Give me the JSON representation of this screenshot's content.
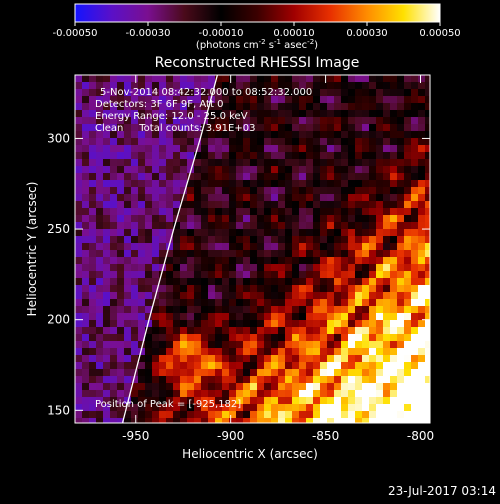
{
  "colorbar": {
    "tick_labels": [
      "-0.00050",
      "-0.00030",
      "-0.00010",
      "0.00010",
      "0.00030",
      "0.00050"
    ],
    "tick_values": [
      -0.0005,
      -0.0003,
      -0.0001,
      0.0001,
      0.0003,
      0.0005
    ],
    "range": [
      -0.0005,
      0.0005
    ],
    "unit_main": "(photons cm",
    "unit_exp1": "-2",
    "unit_s": " s",
    "unit_exp2": "-1",
    "unit_asec": " asec",
    "unit_exp3": "-2",
    "unit_close": ")",
    "colors": [
      "#1414ff",
      "#5a10c8",
      "#7a0f90",
      "#4a0a1a",
      "#000000",
      "#3c0000",
      "#a00000",
      "#e83000",
      "#ff8c00",
      "#ffe000",
      "#ffffff"
    ]
  },
  "chart_data": {
    "type": "heatmap",
    "title": "Reconstructed RHESSI Image",
    "xlabel": "Heliocentric X (arcsec)",
    "ylabel": "Heliocentric Y (arcsec)",
    "xlim": [
      -982,
      -795
    ],
    "ylim": [
      143,
      335
    ],
    "x_ticks": [
      -950,
      -900,
      -850,
      -800
    ],
    "x_tick_labels": [
      "-950",
      "-900",
      "-850",
      "-800"
    ],
    "y_ticks": [
      150,
      200,
      250,
      300
    ],
    "y_tick_labels": [
      "150",
      "200",
      "250",
      "300"
    ],
    "annotations": [
      "5-Nov-2014 08:42:32.000 to 08:52:32.000",
      "Detectors: 3F 6F 9F, Att 0",
      "Energy Range: 12.0 - 25.0 keV",
      "Clean     Total counts: 3.91E+03"
    ],
    "peak_label": "Position of Peak = [-925,182]",
    "peak_position": [
      -925,
      182
    ],
    "limb_points": [
      [
        -957,
        143
      ],
      [
        -943,
        200
      ],
      [
        -930,
        250
      ],
      [
        -916,
        300
      ],
      [
        -907,
        335
      ]
    ],
    "grid": false
  },
  "footer": {
    "timestamp": "23-Jul-2017 03:14"
  }
}
